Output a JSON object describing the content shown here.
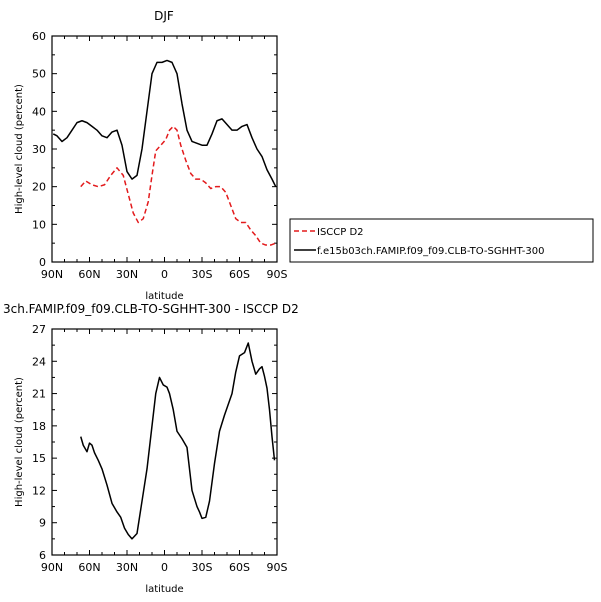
{
  "chart_data": [
    {
      "type": "line",
      "title": "DJF",
      "xlabel": "latitude",
      "ylabel": "High-level cloud (percent)",
      "xlim": [
        90,
        -90
      ],
      "ylim": [
        0,
        60
      ],
      "x_ticks": [
        90,
        60,
        30,
        0,
        -30,
        -60,
        -90
      ],
      "x_tick_labels": [
        "90N",
        "60N",
        "30N",
        "0",
        "30S",
        "60S",
        "90S"
      ],
      "y_ticks": [
        0,
        10,
        20,
        30,
        40,
        50,
        60
      ],
      "y_tick_labels": [
        "0",
        "10",
        "20",
        "30",
        "40",
        "50",
        "60"
      ],
      "legend_position": "right",
      "series": [
        {
          "name": "ISCCP D2",
          "color": "#e31a1c",
          "dash": "dashed",
          "x": [
            67,
            63,
            58,
            53,
            48,
            43,
            38,
            33,
            29,
            25,
            21,
            17,
            13,
            10,
            7,
            3,
            -1,
            -4,
            -7,
            -10,
            -13,
            -17,
            -21,
            -25,
            -29,
            -33,
            -37,
            -41,
            -45,
            -49,
            -53,
            -57,
            -61,
            -65,
            -69,
            -73,
            -77,
            -81,
            -85,
            -89
          ],
          "y": [
            20,
            21.5,
            20.5,
            20,
            20.5,
            23,
            25,
            23,
            18,
            13,
            10.5,
            11.5,
            16,
            23,
            29.5,
            31,
            32.5,
            35,
            36,
            35,
            31,
            27,
            23.5,
            22,
            22,
            21,
            19.5,
            20,
            20,
            18.5,
            15,
            11.5,
            10.5,
            10.5,
            8.5,
            7,
            5,
            4.5,
            4.5,
            5
          ]
        },
        {
          "name": "f.e15b03ch.FAMIP.f09_f09.CLB-TO-SGHHT-300",
          "color": "#000000",
          "dash": "solid",
          "x": [
            89,
            86,
            82,
            78,
            74,
            70,
            66,
            62,
            58,
            54,
            50,
            46,
            42,
            38,
            34,
            30,
            26,
            22,
            18,
            14,
            10,
            6,
            2,
            -2,
            -6,
            -10,
            -14,
            -18,
            -22,
            -26,
            -30,
            -34,
            -38,
            -42,
            -46,
            -50,
            -54,
            -58,
            -62,
            -66,
            -70,
            -74,
            -78,
            -82,
            -86,
            -89
          ],
          "y": [
            34,
            33.5,
            32,
            33,
            35,
            37,
            37.5,
            37,
            36,
            35,
            33.5,
            33,
            34.5,
            35,
            31,
            24,
            22,
            23,
            30,
            40,
            50,
            53,
            53,
            53.5,
            53,
            50,
            42,
            35,
            32,
            31.5,
            31,
            31,
            34,
            37.5,
            38,
            36.5,
            35,
            35,
            36,
            36.5,
            33,
            30,
            28,
            24.5,
            22,
            20
          ]
        }
      ]
    },
    {
      "type": "line",
      "title": "3ch.FAMIP.f09_f09.CLB-TO-SGHHT-300 - ISCCP D2",
      "xlabel": "latitude",
      "ylabel": "High-level cloud (percent)",
      "xlim": [
        90,
        -90
      ],
      "ylim": [
        6,
        27
      ],
      "x_ticks": [
        90,
        60,
        30,
        0,
        -30,
        -60,
        -90
      ],
      "x_tick_labels": [
        "90N",
        "60N",
        "30N",
        "0",
        "30S",
        "60S",
        "90S"
      ],
      "y_ticks": [
        6,
        9,
        12,
        15,
        18,
        21,
        24,
        27
      ],
      "y_tick_labels": [
        "6",
        "9",
        "12",
        "15",
        "18",
        "21",
        "24",
        "27"
      ],
      "series": [
        {
          "name": "",
          "color": "#000000",
          "dash": "solid",
          "x": [
            67,
            65,
            62,
            60,
            58,
            56,
            53,
            50,
            46,
            42,
            38,
            35,
            32,
            29,
            26,
            22,
            18,
            14,
            10,
            7,
            4,
            1,
            -2,
            -4,
            -7,
            -10,
            -14,
            -18,
            -22,
            -26,
            -28,
            -30,
            -33,
            -36,
            -40,
            -44,
            -48,
            -51,
            -54,
            -57,
            -60,
            -64,
            -67,
            -70,
            -73,
            -76,
            -78,
            -80,
            -82,
            -84,
            -86,
            -88
          ],
          "y": [
            17,
            16.2,
            15.6,
            16.4,
            16.2,
            15.5,
            14.8,
            14,
            12.5,
            10.8,
            10,
            9.5,
            8.5,
            7.9,
            7.5,
            8,
            11,
            14,
            18,
            21,
            22.5,
            21.8,
            21.6,
            21,
            19.5,
            17.5,
            16.8,
            16,
            12,
            10.5,
            10,
            9.4,
            9.5,
            11,
            14.5,
            17.5,
            19,
            20,
            21,
            23,
            24.5,
            24.8,
            25.7,
            24,
            22.8,
            23.3,
            23.5,
            22.6,
            21.5,
            19.5,
            17,
            14.8
          ]
        }
      ]
    }
  ]
}
